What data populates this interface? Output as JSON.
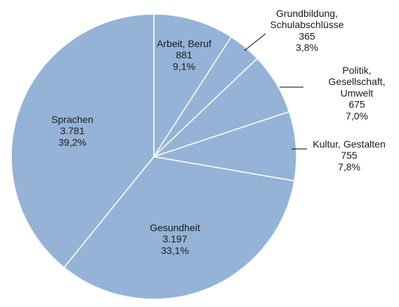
{
  "chart_data": {
    "type": "pie",
    "title": "",
    "colors": {
      "slice_fill": "#95b3d7",
      "slice_stroke": "#ffffff",
      "leader_line": "#000000",
      "text": "#1a1a1a"
    },
    "slices": [
      {
        "name": "Arbeit, Beruf",
        "label_lines": [
          "Arbeit, Beruf"
        ],
        "value": 881,
        "value_label": "881",
        "percent_label": "9,1%"
      },
      {
        "name": "Grundbildung, Schulabschlüsse",
        "label_lines": [
          "Grundbildung,",
          "Schulabschlüsse"
        ],
        "value": 365,
        "value_label": "365",
        "percent_label": "3,8%"
      },
      {
        "name": "Politik, Gesellschaft, Umwelt",
        "label_lines": [
          "Politik,",
          "Gesellschaft,",
          "Umwelt"
        ],
        "value": 675,
        "value_label": "675",
        "percent_label": "7,0%"
      },
      {
        "name": "Kultur, Gestalten",
        "label_lines": [
          "Kultur,  Gestalten"
        ],
        "value": 755,
        "value_label": "755",
        "percent_label": "7,8%"
      },
      {
        "name": "Gesundheit",
        "label_lines": [
          "Gesundheit"
        ],
        "value": 3197,
        "value_label": "3.197",
        "percent_label": "33,1%"
      },
      {
        "name": "Sprachen",
        "label_lines": [
          "Sprachen"
        ],
        "value": 3781,
        "value_label": "3.781",
        "percent_label": "39,2%"
      }
    ]
  }
}
